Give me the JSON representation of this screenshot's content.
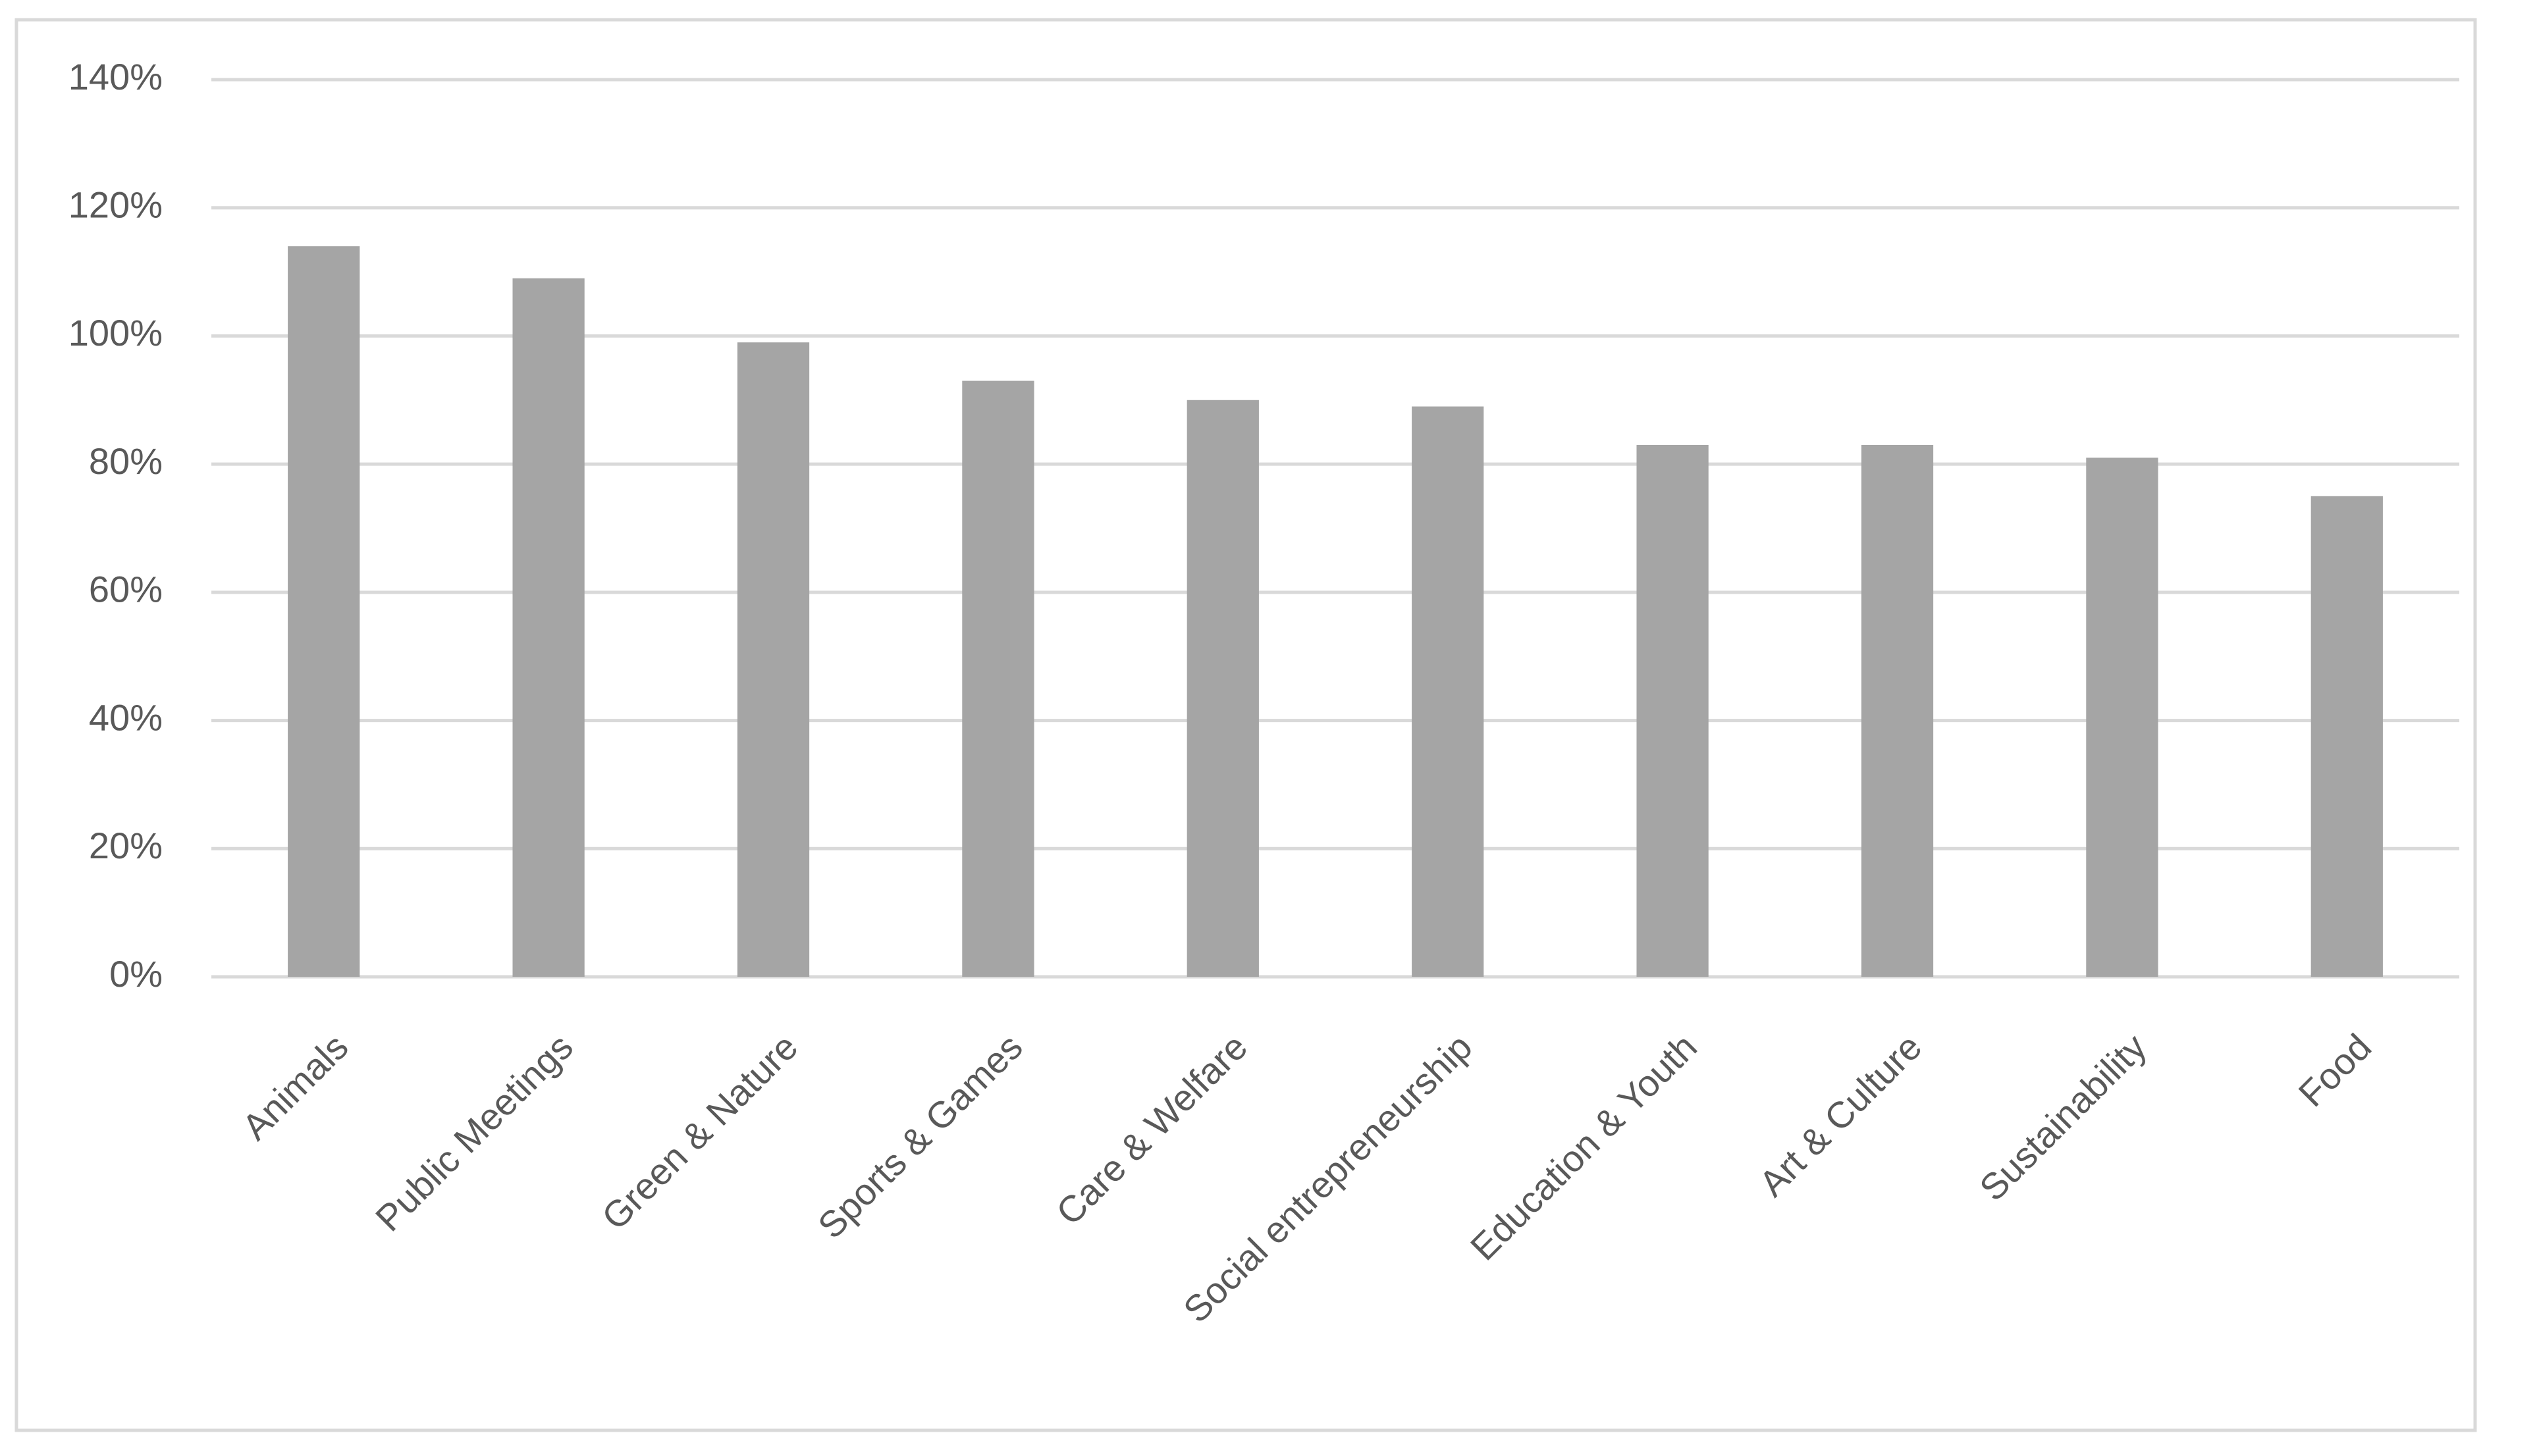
{
  "chart_data": {
    "type": "bar",
    "categories": [
      "Animals",
      "Public Meetings",
      "Green & Nature",
      "Sports & Games",
      "Care & Welfare",
      "Social entrepreneurship",
      "Education & Youth",
      "Art & Culture",
      "Sustainability",
      "Food"
    ],
    "values": [
      114,
      109,
      99,
      93,
      90,
      89,
      83,
      83,
      81,
      75
    ],
    "color": "#a5a5a5",
    "ylim": [
      0,
      140
    ],
    "yticks": [
      {
        "value": 0,
        "label": "0%"
      },
      {
        "value": 20,
        "label": "20%"
      },
      {
        "value": 40,
        "label": "40%"
      },
      {
        "value": 60,
        "label": "60%"
      },
      {
        "value": 80,
        "label": "80%"
      },
      {
        "value": 100,
        "label": "100%"
      },
      {
        "value": 120,
        "label": "120%"
      },
      {
        "value": 140,
        "label": "140%"
      }
    ],
    "grid": true
  }
}
